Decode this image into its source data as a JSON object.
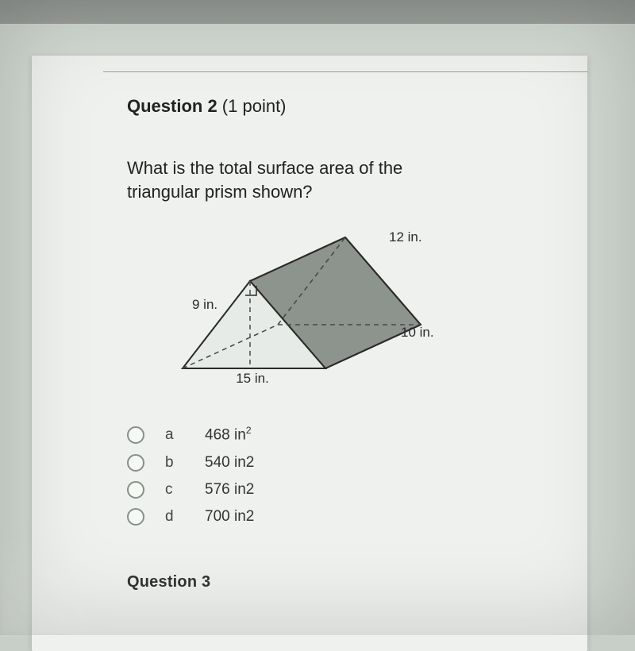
{
  "question": {
    "header_num": "Question 2",
    "header_pts": " (1 point)",
    "text": "What is the total surface area of the triangular prism shown?"
  },
  "diagram": {
    "type": "prism",
    "labels": {
      "top_right": "12 in.",
      "left_leg": "9 in.",
      "right_depth": "10 in.",
      "bottom": "15 in."
    },
    "colors": {
      "face_light": "#e7ebe7",
      "face_dark": "#8d938d",
      "stroke": "#2a2a2a",
      "dash": "#4a4a4a",
      "label": "#2a2a2a"
    },
    "stroke_width": 2,
    "dash_pattern": "6,5",
    "label_fontsize": 17
  },
  "options": [
    {
      "letter": "a",
      "value": "468 in²"
    },
    {
      "letter": "b",
      "value": "540 in2"
    },
    {
      "letter": "c",
      "value": "576 in2"
    },
    {
      "letter": "d",
      "value": "700 in2"
    }
  ],
  "next_question_hint": "Question 3"
}
